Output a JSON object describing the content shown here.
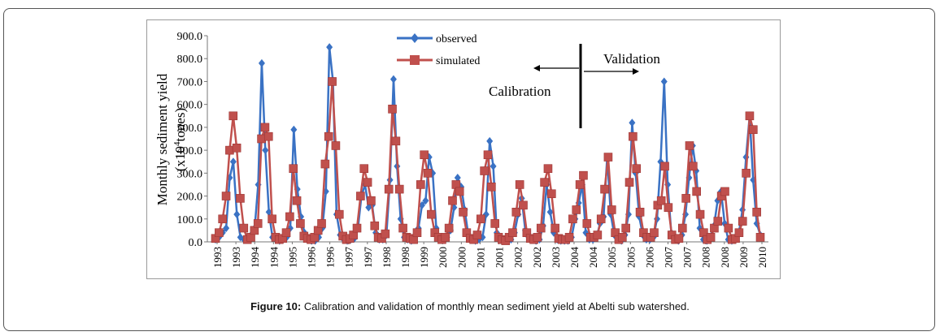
{
  "chart_data": {
    "type": "line",
    "ylabel_line1": "Monthly sediment  yield",
    "ylabel_line2_pre": "(x10",
    "ylabel_sup": "4",
    "ylabel_line2_post": "tones)",
    "ylim": [
      0,
      900
    ],
    "yticks": [
      "0.0",
      "100.0",
      "200.0",
      "300.0",
      "400.0",
      "500.0",
      "600.0",
      "700.0",
      "800.0",
      "900.0"
    ],
    "xticks": [
      "1993",
      "1993",
      "1994",
      "1994",
      "1995",
      "1996",
      "1996",
      "1997",
      "1997",
      "1998",
      "1998",
      "1999",
      "2000",
      "2000",
      "2001",
      "2001",
      "2002",
      "2002",
      "2003",
      "2004",
      "2004",
      "2005",
      "2005",
      "2006",
      "2007",
      "2007",
      "2008",
      "2008",
      "2009",
      "2010"
    ],
    "legend_position": "top-center",
    "annotations": {
      "validation": "Validation",
      "calibration": "Calibration"
    },
    "series": [
      {
        "name": "observed",
        "color": "#3a72c4",
        "marker": "diamond",
        "values": [
          10,
          20,
          40,
          60,
          280,
          350,
          120,
          20,
          10,
          15,
          30,
          60,
          250,
          780,
          400,
          130,
          20,
          10,
          5,
          10,
          20,
          60,
          490,
          230,
          110,
          40,
          10,
          5,
          5,
          20,
          60,
          220,
          850,
          700,
          120,
          30,
          10,
          5,
          10,
          15,
          60,
          200,
          250,
          150,
          160,
          40,
          10,
          10,
          30,
          270,
          710,
          330,
          100,
          20,
          10,
          5,
          20,
          60,
          160,
          180,
          370,
          300,
          60,
          20,
          10,
          20,
          50,
          150,
          280,
          240,
          140,
          30,
          10,
          5,
          10,
          20,
          120,
          440,
          330,
          40,
          10,
          5,
          5,
          10,
          40,
          120,
          190,
          50,
          20,
          10,
          5,
          10,
          70,
          250,
          130,
          40,
          10,
          5,
          5,
          5,
          20,
          100,
          170,
          250,
          40,
          10,
          10,
          20,
          80,
          110,
          370,
          120,
          30,
          10,
          5,
          30,
          120,
          520,
          300,
          110,
          30,
          10,
          10,
          20,
          100,
          350,
          700,
          250,
          40,
          10,
          5,
          30,
          120,
          280,
          420,
          310,
          60,
          10,
          5,
          20,
          70,
          180,
          220,
          80,
          10,
          5,
          10,
          40,
          140,
          370,
          550,
          270,
          80,
          30
        ]
      },
      {
        "name": "simulated",
        "color": "#c0504d",
        "marker": "square",
        "values": [
          15,
          40,
          100,
          200,
          400,
          550,
          410,
          190,
          60,
          10,
          20,
          50,
          80,
          450,
          500,
          460,
          100,
          20,
          10,
          15,
          40,
          110,
          320,
          180,
          80,
          25,
          15,
          10,
          20,
          50,
          80,
          340,
          460,
          700,
          420,
          120,
          25,
          10,
          15,
          30,
          60,
          200,
          320,
          260,
          180,
          70,
          20,
          15,
          35,
          230,
          580,
          440,
          230,
          60,
          20,
          15,
          10,
          40,
          250,
          380,
          300,
          120,
          40,
          20,
          10,
          20,
          60,
          180,
          250,
          220,
          130,
          40,
          15,
          10,
          30,
          100,
          310,
          380,
          240,
          80,
          20,
          10,
          5,
          20,
          40,
          130,
          250,
          160,
          40,
          15,
          10,
          20,
          60,
          260,
          320,
          210,
          60,
          15,
          10,
          10,
          20,
          100,
          140,
          250,
          290,
          80,
          20,
          20,
          30,
          100,
          230,
          370,
          140,
          40,
          10,
          20,
          60,
          260,
          460,
          320,
          130,
          40,
          20,
          20,
          40,
          160,
          180,
          330,
          150,
          30,
          10,
          15,
          60,
          190,
          420,
          330,
          220,
          120,
          40,
          10,
          20,
          60,
          90,
          200,
          220,
          60,
          10,
          15,
          40,
          90,
          300,
          550,
          490,
          130,
          20
        ]
      }
    ]
  }
}
